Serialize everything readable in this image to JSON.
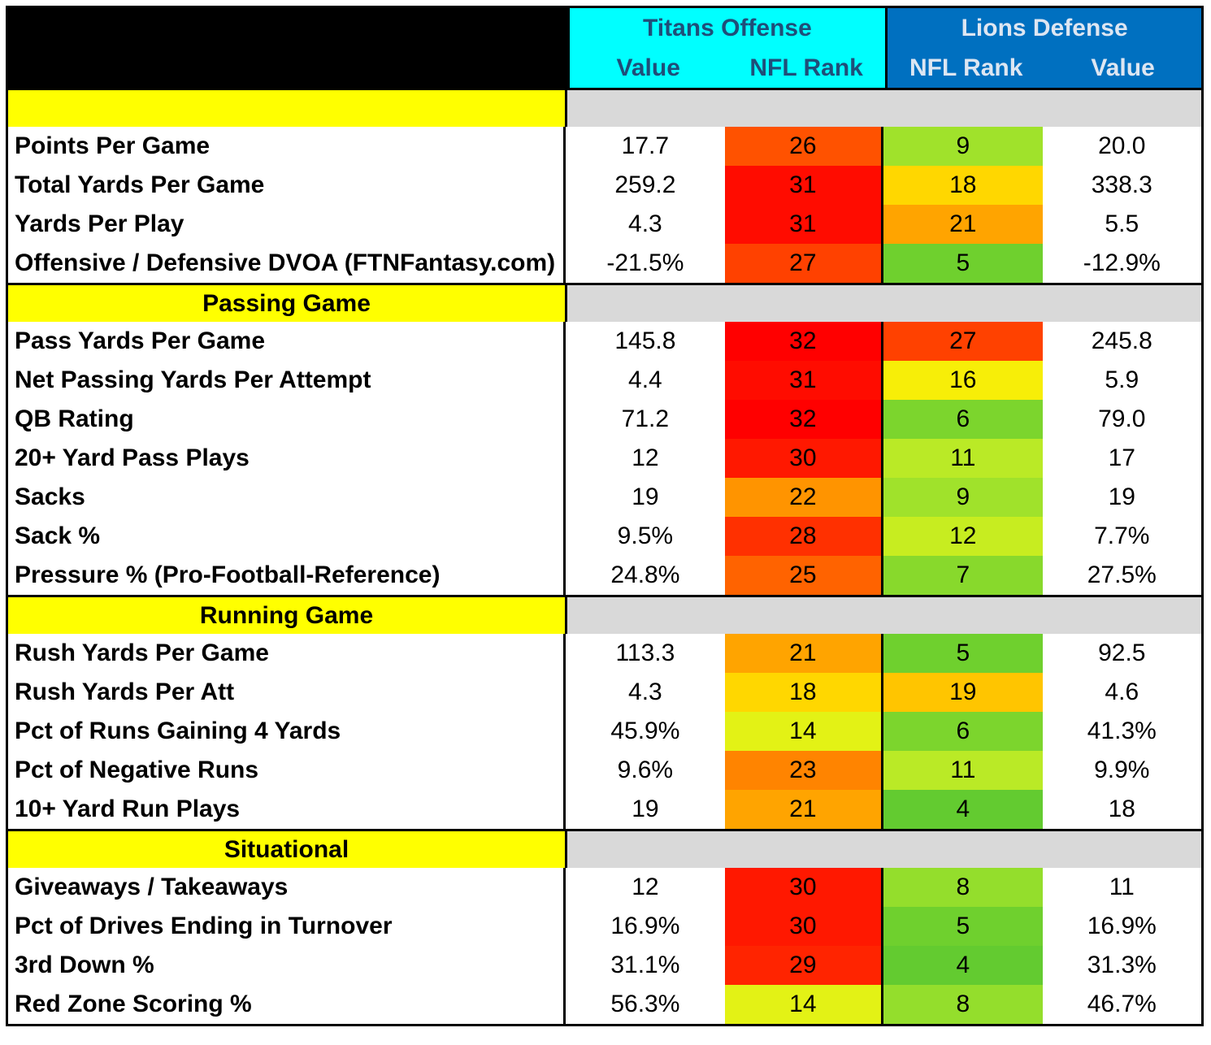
{
  "header": {
    "titans_title": "Titans Offense",
    "lions_title": "Lions Defense",
    "titans_cols": [
      "Value",
      "NFL Rank"
    ],
    "lions_cols": [
      "NFL Rank",
      "Value"
    ]
  },
  "colors": {
    "titans_header_bg": "#00ffff",
    "titans_header_text": "#1f4e79",
    "lions_header_bg": "#0070c0",
    "lions_header_text": "#dde6f2",
    "section_label_bg": "#ffff00",
    "section_fill_bg": "#d9d9d9"
  },
  "chart_data": {
    "type": "table",
    "columns": [
      "Titans Offense Value",
      "Titans Offense NFL Rank",
      "Lions Defense NFL Rank",
      "Lions Defense Value"
    ],
    "rank_color_scale": "green (1) to yellow (16) to red (32)",
    "sections": [
      {
        "title": "",
        "rows": [
          {
            "label": "Points Per Game",
            "titans_value": "17.7",
            "titans_rank": 26,
            "lions_rank": 9,
            "lions_value": "20.0"
          },
          {
            "label": "Total Yards Per Game",
            "titans_value": "259.2",
            "titans_rank": 31,
            "lions_rank": 18,
            "lions_value": "338.3"
          },
          {
            "label": "Yards Per Play",
            "titans_value": "4.3",
            "titans_rank": 31,
            "lions_rank": 21,
            "lions_value": "5.5"
          },
          {
            "label": "Offensive / Defensive DVOA (FTNFantasy.com)",
            "titans_value": "-21.5%",
            "titans_rank": 27,
            "lions_rank": 5,
            "lions_value": "-12.9%"
          }
        ]
      },
      {
        "title": "Passing Game",
        "rows": [
          {
            "label": "Pass Yards Per Game",
            "titans_value": "145.8",
            "titans_rank": 32,
            "lions_rank": 27,
            "lions_value": "245.8"
          },
          {
            "label": "Net Passing Yards Per Attempt",
            "titans_value": "4.4",
            "titans_rank": 31,
            "lions_rank": 16,
            "lions_value": "5.9"
          },
          {
            "label": "QB Rating",
            "titans_value": "71.2",
            "titans_rank": 32,
            "lions_rank": 6,
            "lions_value": "79.0"
          },
          {
            "label": "20+ Yard Pass Plays",
            "titans_value": "12",
            "titans_rank": 30,
            "lions_rank": 11,
            "lions_value": "17"
          },
          {
            "label": "Sacks",
            "titans_value": "19",
            "titans_rank": 22,
            "lions_rank": 9,
            "lions_value": "19"
          },
          {
            "label": "Sack %",
            "titans_value": "9.5%",
            "titans_rank": 28,
            "lions_rank": 12,
            "lions_value": "7.7%"
          },
          {
            "label": "Pressure % (Pro-Football-Reference)",
            "titans_value": "24.8%",
            "titans_rank": 25,
            "lions_rank": 7,
            "lions_value": "27.5%"
          }
        ]
      },
      {
        "title": "Running Game",
        "rows": [
          {
            "label": "Rush Yards Per Game",
            "titans_value": "113.3",
            "titans_rank": 21,
            "lions_rank": 5,
            "lions_value": "92.5"
          },
          {
            "label": "Rush Yards Per Att",
            "titans_value": "4.3",
            "titans_rank": 18,
            "lions_rank": 19,
            "lions_value": "4.6"
          },
          {
            "label": "Pct of Runs Gaining 4 Yards",
            "titans_value": "45.9%",
            "titans_rank": 14,
            "lions_rank": 6,
            "lions_value": "41.3%"
          },
          {
            "label": "Pct of Negative Runs",
            "titans_value": "9.6%",
            "titans_rank": 23,
            "lions_rank": 11,
            "lions_value": "9.9%"
          },
          {
            "label": "10+ Yard Run Plays",
            "titans_value": "19",
            "titans_rank": 21,
            "lions_rank": 4,
            "lions_value": "18"
          }
        ]
      },
      {
        "title": "Situational",
        "rows": [
          {
            "label": "Giveaways / Takeaways",
            "titans_value": "12",
            "titans_rank": 30,
            "lions_rank": 8,
            "lions_value": "11"
          },
          {
            "label": "Pct of Drives Ending in Turnover",
            "titans_value": "16.9%",
            "titans_rank": 30,
            "lions_rank": 5,
            "lions_value": "16.9%"
          },
          {
            "label": "3rd Down %",
            "titans_value": "31.1%",
            "titans_rank": 29,
            "lions_rank": 4,
            "lions_value": "31.3%"
          },
          {
            "label": "Red Zone Scoring %",
            "titans_value": "56.3%",
            "titans_rank": 14,
            "lions_rank": 8,
            "lions_value": "46.7%"
          }
        ]
      }
    ]
  }
}
